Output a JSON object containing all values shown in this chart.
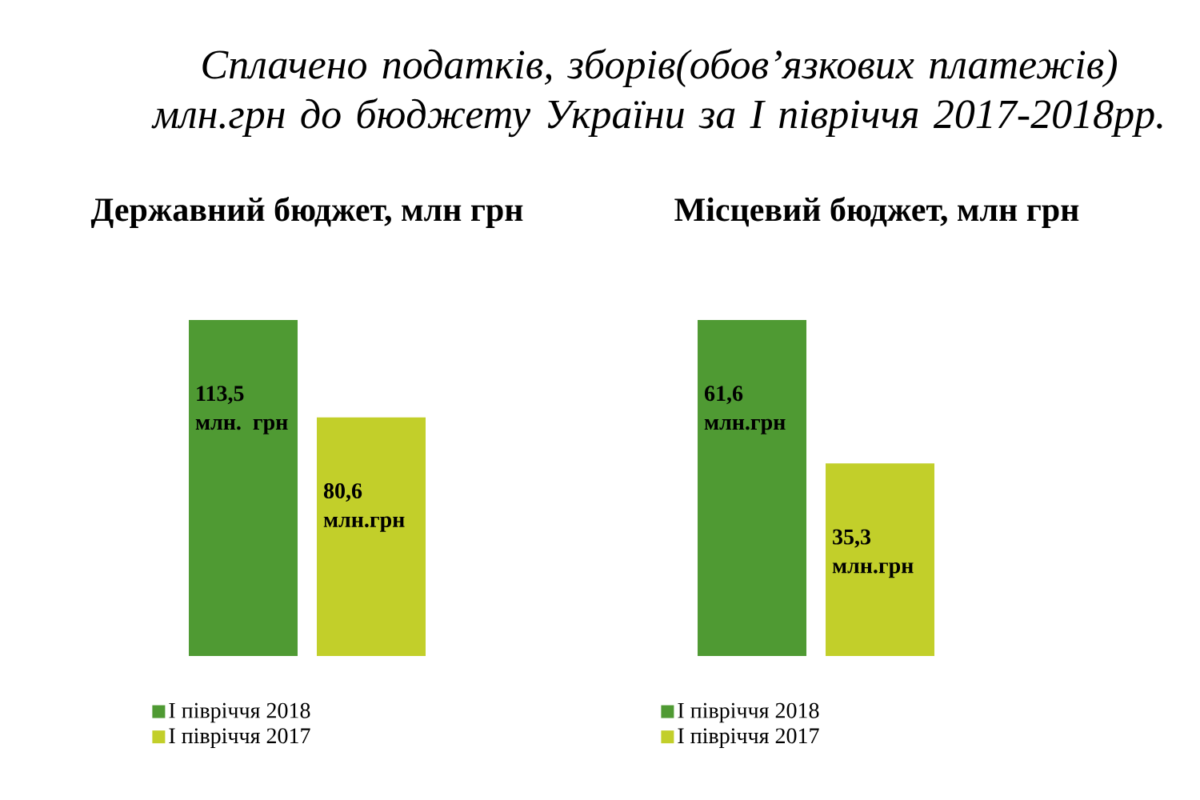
{
  "chart_data": [
    {
      "type": "other",
      "title": "Сплачено податків, зборів(обов’язкових платежів) млн.грн до бюджету України за І півріччя 2017-2018рр."
    },
    {
      "type": "bar",
      "title": "Державний бюджет, млн грн",
      "categories": [
        null
      ],
      "series": [
        {
          "name": "І півріччя 2018",
          "color": "#4f9a33",
          "values": [
            113.5
          ],
          "value_labels": [
            "113,5 млн. грн"
          ]
        },
        {
          "name": "І півріччя 2017",
          "color": "#c2cf2a",
          "values": [
            80.6
          ],
          "value_labels": [
            "80,6 млн.грн"
          ]
        }
      ],
      "legend": "bottom"
    },
    {
      "type": "bar",
      "title": "Місцевий бюджет, млн грн",
      "categories": [
        null
      ],
      "series": [
        {
          "name": "І півріччя 2018",
          "color": "#4f9a33",
          "values": [
            61.6
          ],
          "value_labels": [
            "61,6 млн.грн"
          ]
        },
        {
          "name": "І півріччя 2017",
          "color": "#c2cf2a",
          "values": [
            35.3
          ],
          "value_labels": [
            "35,3 млн.грн"
          ]
        }
      ],
      "legend": "bottom"
    }
  ]
}
